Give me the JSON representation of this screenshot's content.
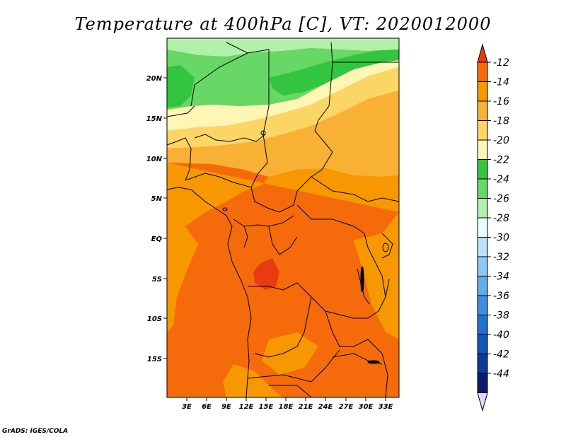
{
  "title": "Temperature at 400hPa [C], VT: 2020012000",
  "credit": "GrADS: IGES/COLA",
  "lat_labels": [
    "20N",
    "15N",
    "10N",
    "5N",
    "EQ",
    "5S",
    "10S",
    "15S"
  ],
  "lon_labels": [
    "3E",
    "6E",
    "9E",
    "12E",
    "15E",
    "18E",
    "21E",
    "24E",
    "27E",
    "30E",
    "33E"
  ],
  "colorbar": {
    "labels": [
      "-12",
      "-14",
      "-16",
      "-18",
      "-20",
      "-22",
      "-24",
      "-26",
      "-28",
      "-30",
      "-32",
      "-34",
      "-36",
      "-38",
      "-40",
      "-42",
      "-44"
    ],
    "colors": [
      "#e63c10",
      "#f56b0c",
      "#f79800",
      "#f9b135",
      "#fcd665",
      "#fff5b4",
      "#32c53f",
      "#67d766",
      "#b1f0a8",
      "#e8ffff",
      "#b9e1fb",
      "#8ec6f5",
      "#64abec",
      "#3c8edf",
      "#2270d0",
      "#1155b7",
      "#0a3a98",
      "#0d1a6e",
      "#dcdcf5"
    ]
  },
  "zone_colors": {
    "light_green": "#b1f0a8",
    "green": "#67d766",
    "dark_green": "#32c53f",
    "pale_yellow": "#fff5b4",
    "yellow": "#fcd665",
    "light_orange": "#f9b135",
    "orange": "#f79800",
    "dark_orange": "#f56b0c",
    "red": "#e63c10"
  }
}
